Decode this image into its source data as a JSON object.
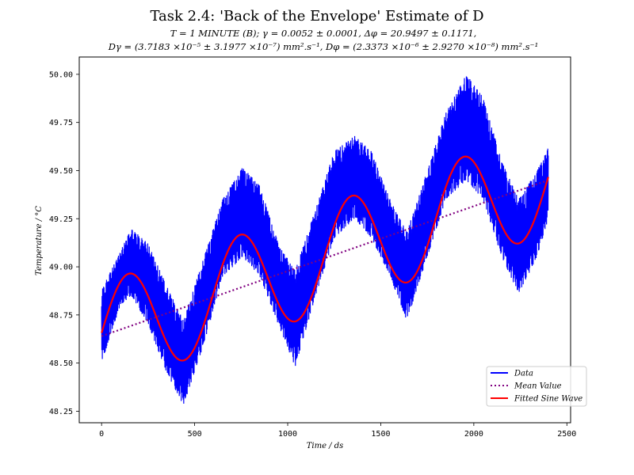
{
  "chart_data": {
    "type": "line",
    "title": "Task 2.4: 'Back of the Envelope' Estimate of D",
    "subtitle_line1": "T = 1 MINUTE (B); γ = 0.0052 ± 0.0001, Δφ = 20.9497 ± 0.1171,",
    "subtitle_line2": "Dγ = (3.7183 ×10⁻⁵ ± 3.1977 ×10⁻⁷) mm².s⁻¹, Dφ = (2.3373 ×10⁻⁶ ± 2.9270 ×10⁻⁸) mm².s⁻¹",
    "xlabel": "Time / ds",
    "ylabel": "Temperature / °C",
    "xlim": [
      -120,
      2520
    ],
    "ylim": [
      48.19,
      50.09
    ],
    "xticks": [
      0,
      500,
      1000,
      1500,
      2000,
      2500
    ],
    "xtick_labels": [
      "0",
      "500",
      "1000",
      "1500",
      "2000",
      "2500"
    ],
    "yticks": [
      48.25,
      48.5,
      48.75,
      49.0,
      49.25,
      49.5,
      49.75,
      50.0
    ],
    "ytick_labels": [
      "48.25",
      "48.50",
      "48.75",
      "49.00",
      "49.25",
      "49.50",
      "49.75",
      "50.00"
    ],
    "grid": false,
    "legend_position": "lower-right",
    "series": [
      {
        "name": "Data",
        "color": "#0000ff",
        "style": "solid",
        "x_range": [
          0,
          2400
        ],
        "envelope": {
          "x": [
            0,
            100,
            160,
            250,
            350,
            440,
            550,
            650,
            760,
            850,
            950,
            1040,
            1150,
            1250,
            1360,
            1450,
            1550,
            1640,
            1750,
            1850,
            1960,
            2050,
            2150,
            2240,
            2340,
            2400
          ],
          "upper": [
            48.88,
            49.08,
            49.2,
            49.12,
            48.9,
            48.72,
            49.05,
            49.35,
            49.52,
            49.42,
            49.12,
            48.98,
            49.3,
            49.6,
            49.68,
            49.6,
            49.35,
            49.18,
            49.5,
            49.8,
            50.0,
            49.88,
            49.55,
            49.35,
            49.5,
            49.62
          ],
          "lower": [
            48.5,
            48.8,
            48.85,
            48.7,
            48.45,
            48.28,
            48.6,
            48.95,
            49.05,
            48.95,
            48.7,
            48.48,
            48.85,
            49.15,
            49.25,
            49.15,
            48.95,
            48.72,
            49.05,
            49.35,
            49.45,
            49.35,
            49.05,
            48.86,
            49.05,
            49.25
          ]
        }
      },
      {
        "name": "Mean Value",
        "color": "#800080",
        "style": "dotted",
        "x": [
          0,
          2400
        ],
        "y": [
          48.64,
          49.45
        ]
      },
      {
        "name": "Fitted Sine Wave",
        "color": "#ff0000",
        "style": "solid",
        "model": {
          "period": 600,
          "amplitude": 0.275,
          "phase": 0.06,
          "mean_start": 48.64,
          "mean_end": 49.45,
          "x_range": [
            0,
            2400
          ]
        }
      }
    ]
  }
}
